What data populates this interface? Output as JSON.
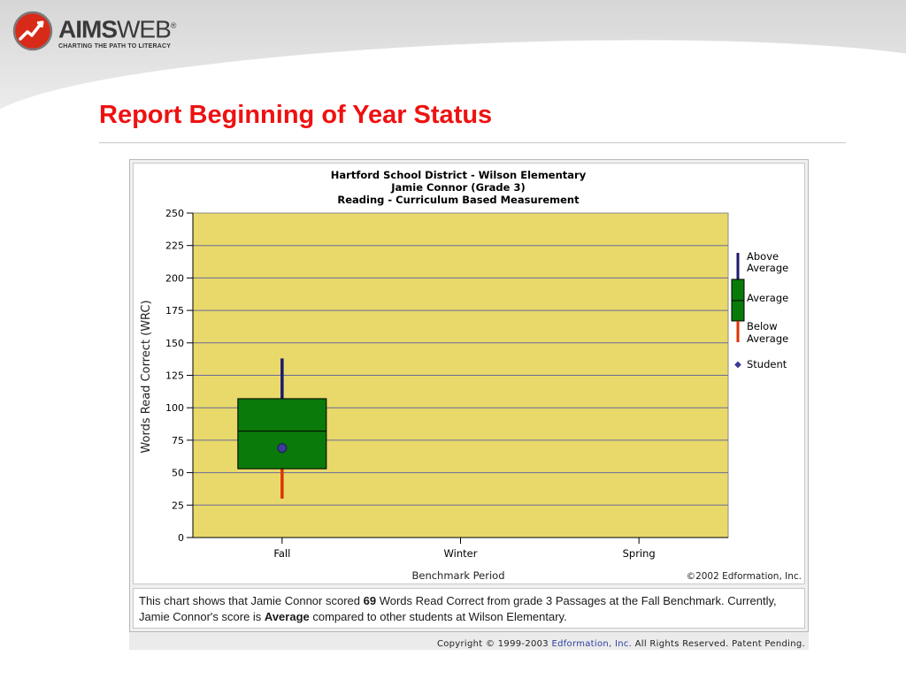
{
  "header": {
    "logo_name_bold": "AIMS",
    "logo_name_light": "WEB",
    "logo_reg": "®",
    "logo_tagline": "CHARTING THE PATH TO LITERACY",
    "page_title": "Report Beginning of Year Status"
  },
  "chart_data": {
    "type": "box",
    "title_lines": [
      "Hartford School District - Wilson Elementary",
      "Jamie Connor (Grade 3)",
      "Reading - Curriculum Based Measurement"
    ],
    "xlabel": "Benchmark Period",
    "ylabel": "Words Read Correct (WRC)",
    "categories": [
      "Fall",
      "Winter",
      "Spring"
    ],
    "ylim": [
      0,
      250
    ],
    "yticks": [
      0,
      25,
      50,
      75,
      100,
      125,
      150,
      175,
      200,
      225,
      250
    ],
    "boxes": [
      {
        "category": "Fall",
        "whisker_low": 30,
        "q1": 53,
        "median": 82,
        "q3": 107,
        "whisker_high": 138,
        "student": 69
      }
    ],
    "legend": {
      "above": [
        "Above",
        "Average"
      ],
      "average": "Average",
      "below": [
        "Below",
        "Average"
      ],
      "student": "Student"
    },
    "credit": "©2002 Edformation, Inc.",
    "colors": {
      "plot_bg": "#e8d96a",
      "grid": "#6a6a9a",
      "box_fill": "#0a7a0a",
      "box_stroke": "#000000",
      "whisker_high": "#1a1a6e",
      "whisker_low": "#dd3300",
      "student_marker": "#3a3aa0"
    },
    "grid": true
  },
  "summary": {
    "part1": "This chart shows that Jamie Connor scored ",
    "score": "69",
    "part2": " Words Read Correct from grade 3 Passages at the Fall Benchmark. Currently, Jamie Connor's score is ",
    "status": "Average",
    "part3": " compared to other students at Wilson Elementary."
  },
  "footer": {
    "prefix": "Copyright © 1999-2003 ",
    "company": "Edformation, Inc.",
    "suffix": " All Rights Reserved.  Patent Pending."
  }
}
